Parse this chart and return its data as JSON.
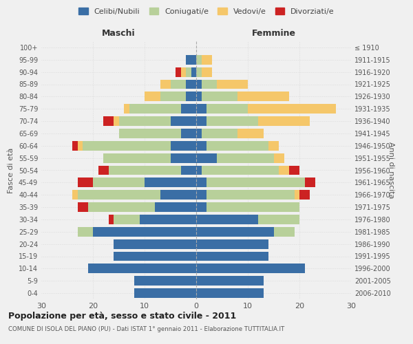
{
  "age_groups": [
    "0-4",
    "5-9",
    "10-14",
    "15-19",
    "20-24",
    "25-29",
    "30-34",
    "35-39",
    "40-44",
    "45-49",
    "50-54",
    "55-59",
    "60-64",
    "65-69",
    "70-74",
    "75-79",
    "80-84",
    "85-89",
    "90-94",
    "95-99",
    "100+"
  ],
  "birth_years": [
    "2006-2010",
    "2001-2005",
    "1996-2000",
    "1991-1995",
    "1986-1990",
    "1981-1985",
    "1976-1980",
    "1971-1975",
    "1966-1970",
    "1961-1965",
    "1956-1960",
    "1951-1955",
    "1946-1950",
    "1941-1945",
    "1936-1940",
    "1931-1935",
    "1926-1930",
    "1921-1925",
    "1916-1920",
    "1911-1915",
    "≤ 1910"
  ],
  "males": {
    "celibi": [
      12,
      12,
      21,
      16,
      16,
      20,
      11,
      8,
      7,
      10,
      3,
      5,
      5,
      3,
      5,
      3,
      2,
      2,
      1,
      2,
      0
    ],
    "coniugati": [
      0,
      0,
      0,
      0,
      0,
      3,
      5,
      13,
      16,
      10,
      14,
      13,
      17,
      12,
      10,
      10,
      5,
      3,
      1,
      0,
      0
    ],
    "vedovi": [
      0,
      0,
      0,
      0,
      0,
      0,
      0,
      0,
      1,
      0,
      0,
      0,
      1,
      0,
      1,
      1,
      3,
      2,
      1,
      0,
      0
    ],
    "divorziati": [
      0,
      0,
      0,
      0,
      0,
      0,
      1,
      2,
      0,
      3,
      2,
      0,
      1,
      0,
      2,
      0,
      0,
      0,
      1,
      0,
      0
    ]
  },
  "females": {
    "nubili": [
      13,
      13,
      21,
      14,
      14,
      15,
      12,
      2,
      2,
      2,
      1,
      4,
      2,
      1,
      2,
      2,
      1,
      1,
      0,
      0,
      0
    ],
    "coniugate": [
      0,
      0,
      0,
      0,
      0,
      4,
      8,
      18,
      17,
      19,
      15,
      11,
      12,
      7,
      10,
      8,
      7,
      3,
      1,
      1,
      0
    ],
    "vedove": [
      0,
      0,
      0,
      0,
      0,
      0,
      0,
      0,
      1,
      0,
      2,
      2,
      2,
      5,
      10,
      17,
      10,
      6,
      2,
      2,
      0
    ],
    "divorziate": [
      0,
      0,
      0,
      0,
      0,
      0,
      0,
      0,
      2,
      2,
      2,
      0,
      0,
      0,
      0,
      0,
      0,
      0,
      0,
      0,
      0
    ]
  },
  "colors": {
    "celibi": "#3a6ea5",
    "coniugati": "#b8d09a",
    "vedovi": "#f5c76a",
    "divorziati": "#cc2222"
  },
  "xlim": 30,
  "title": "Popolazione per età, sesso e stato civile - 2011",
  "subtitle": "COMUNE DI ISOLA DEL PIANO (PU) - Dati ISTAT 1° gennaio 2011 - Elaborazione TUTTITALIA.IT",
  "xlabel_left": "Maschi",
  "xlabel_right": "Femmine",
  "ylabel_left": "Fasce di età",
  "ylabel_right": "Anni di nascita",
  "legend_labels": [
    "Celibi/Nubili",
    "Coniugati/e",
    "Vedovi/e",
    "Divorziati/e"
  ],
  "background_color": "#f0f0f0"
}
